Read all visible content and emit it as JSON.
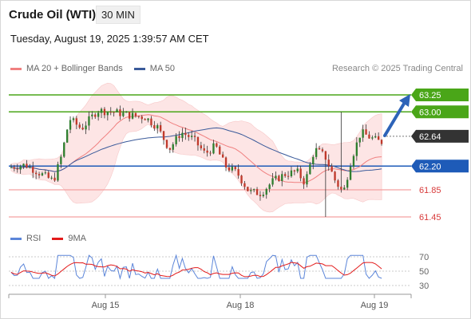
{
  "header": {
    "title": "Crude Oil (WTI)",
    "timeframe": "30 MIN",
    "datetime": "Tuesday, August 19, 2025 1:39:57 AM CET"
  },
  "legend": {
    "ma20_label": "MA 20 + Bollinger Bands",
    "ma50_label": "MA 50",
    "source": "Research © 2025 Trading Central"
  },
  "colors": {
    "ma20": "#f08080",
    "ma50": "#3a5a9a",
    "bands": "#fde0e0",
    "resistance": "#4aa618",
    "pivot": "#1e5bb8",
    "support": "#f4a0a0",
    "current": "#333333",
    "rsi": "#5b85d9",
    "rsi_ma": "#e31b1b",
    "candle_up": "#2f7f2f",
    "candle_down": "#c0392b"
  },
  "rsi_legend": {
    "rsi_label": "RSI",
    "ma_label": "9MA"
  },
  "chart_data": {
    "type": "candlestick",
    "instrument": "Crude Oil (WTI)",
    "interval": "30 MIN",
    "ylim": [
      61.25,
      63.45
    ],
    "x_ticks": [
      "Aug 15",
      "Aug 18",
      "Aug 19"
    ],
    "levels": [
      {
        "price": 63.25,
        "label": "63.25",
        "kind": "resistance"
      },
      {
        "price": 63.0,
        "label": "63.00",
        "kind": "resistance"
      },
      {
        "price": 62.64,
        "label": "62.64",
        "kind": "current"
      },
      {
        "price": 62.2,
        "label": "62.20",
        "kind": "pivot"
      },
      {
        "price": 61.85,
        "label": "61.85",
        "kind": "support"
      },
      {
        "price": 61.45,
        "label": "61.45",
        "kind": "support"
      }
    ],
    "rsi_ticks": [
      70,
      50,
      30
    ],
    "rsi_ylim": [
      20,
      80
    ]
  }
}
